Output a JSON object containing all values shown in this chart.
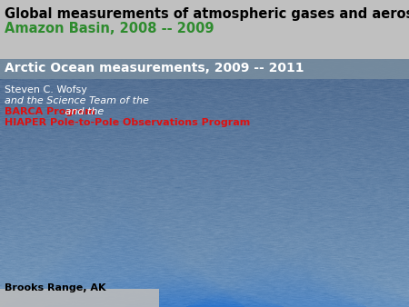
{
  "title_line1": "Global measurements of atmospheric gases and aerosols",
  "title_line2": "Amazon Basin, 2008 -- 2009",
  "title_line3": "Arctic Ocean measurements, 2009 -- 2011",
  "author_line1": "Steven C. Wofsy",
  "author_line2": "and the Science Team of the",
  "author_line3_part1": "BARCA Program",
  "author_line3_part2": " and the",
  "author_line4": "HIAPER Pole-to-Pole Observations Program",
  "caption": "Brooks Range, AK",
  "color_title1": "#000000",
  "color_title2": "#2e8b2e",
  "color_title3": "#ffffff",
  "color_author1": "#ffffff",
  "color_author2": "#ffffff",
  "color_barca": "#dd1111",
  "color_hiaper": "#dd1111",
  "color_caption": "#000000",
  "header_bg": "#c0c0c0",
  "arctic_bg": "#7a8fa0",
  "figsize": [
    4.5,
    3.38
  ],
  "dpi": 100
}
